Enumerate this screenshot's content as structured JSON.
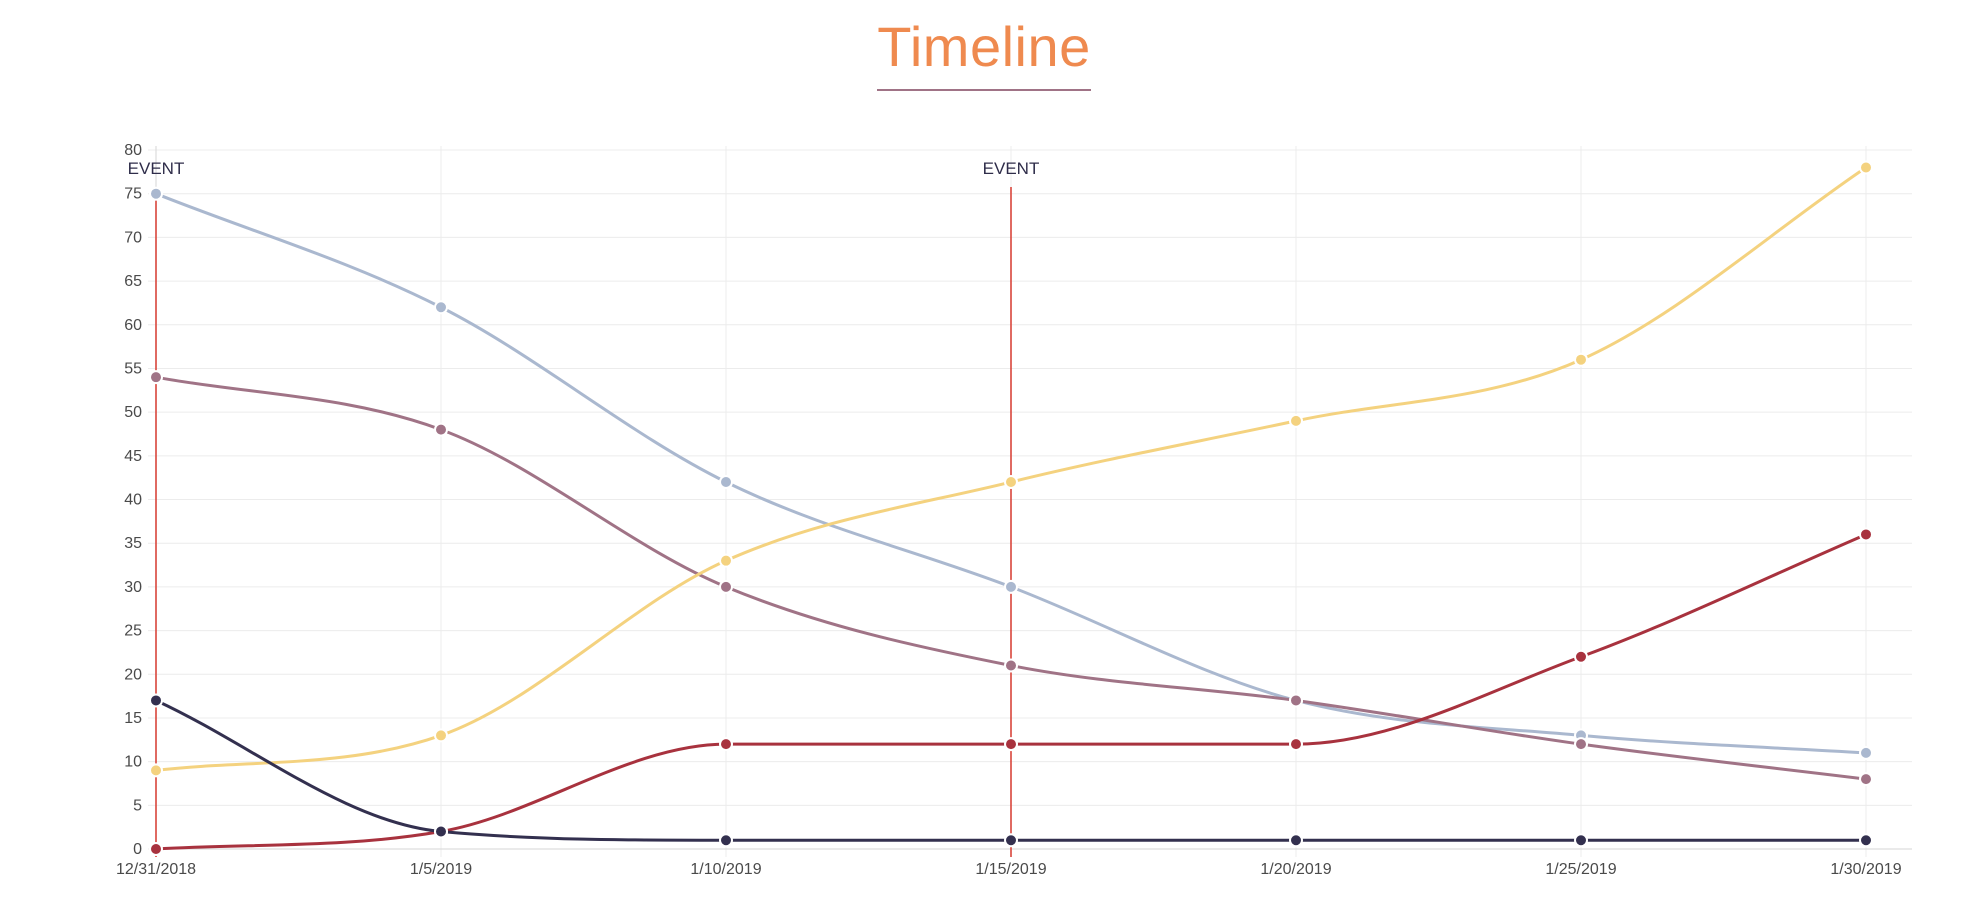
{
  "chart_data": {
    "type": "line",
    "title": "Timeline",
    "x": [
      "12/31/2018",
      "1/5/2019",
      "1/10/2019",
      "1/15/2019",
      "1/20/2019",
      "1/25/2019",
      "1/30/2019"
    ],
    "ylim": [
      0,
      80
    ],
    "yticks": [
      0,
      5,
      10,
      15,
      20,
      25,
      30,
      35,
      40,
      45,
      50,
      55,
      60,
      65,
      70,
      75,
      80
    ],
    "grid": true,
    "legend": "none",
    "series": [
      {
        "color": "#aab8cf",
        "values": [
          75,
          62,
          42,
          30,
          17,
          13,
          11
        ]
      },
      {
        "color": "#a07386",
        "values": [
          54,
          48,
          30,
          21,
          17,
          12,
          8
        ]
      },
      {
        "color": "#f4d27f",
        "values": [
          9,
          13,
          33,
          42,
          49,
          56,
          78
        ]
      },
      {
        "color": "#a8323e",
        "values": [
          0,
          2,
          12,
          12,
          12,
          22,
          36
        ]
      },
      {
        "color": "#33304f",
        "values": [
          17,
          2,
          1,
          1,
          1,
          1,
          1
        ]
      }
    ],
    "annotations": [
      {
        "label": "EVENT",
        "x": "12/31/2018",
        "color": "#d9453b"
      },
      {
        "label": "EVENT",
        "x": "1/15/2019",
        "color": "#d9453b"
      }
    ]
  }
}
